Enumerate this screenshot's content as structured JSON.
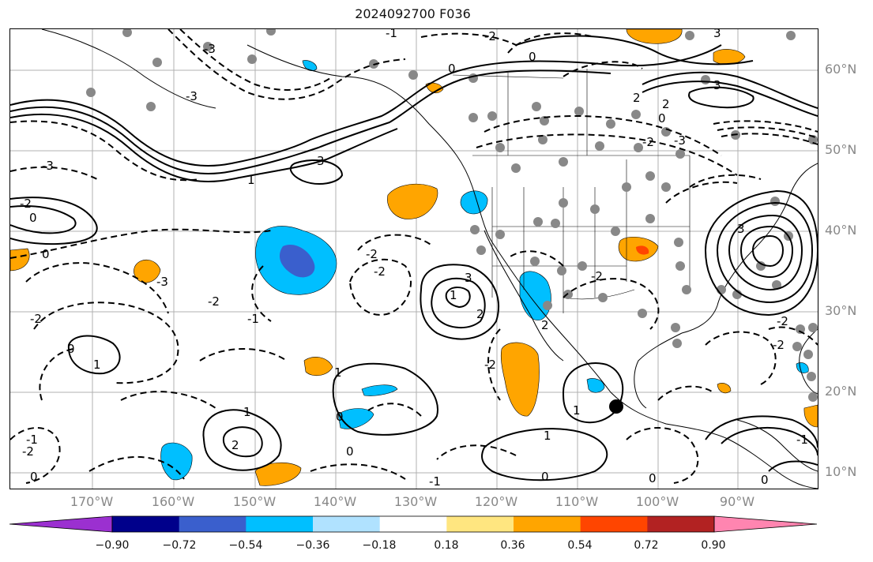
{
  "title": "2024092700 F036",
  "lat_labels": [
    "60°N",
    "50°N",
    "40°N",
    "30°N",
    "20°N",
    "10°N"
  ],
  "lon_labels": [
    "170°W",
    "160°W",
    "150°W",
    "140°W",
    "130°W",
    "120°W",
    "110°W",
    "100°W",
    "90°W"
  ],
  "contour_labels": [
    "-3",
    "-2",
    "-1",
    "0",
    "1",
    "2",
    "3"
  ],
  "colorbar": {
    "ticks": [
      "−0.90",
      "−0.72",
      "−0.54",
      "−0.36",
      "−0.18",
      "0.18",
      "0.36",
      "0.54",
      "0.72",
      "0.90"
    ],
    "colors": [
      "#9b30d0",
      "#00008b",
      "#3a5fcd",
      "#00bfff",
      "#b0e2ff",
      "#ffffff",
      "#ffe680",
      "#ffa500",
      "#ff4500",
      "#b22222",
      "#ff85b0"
    ]
  },
  "marker": {
    "label": "storm-center"
  },
  "colors": {
    "positive": "#ffa500",
    "negative": "#00bfff",
    "station": "#888888"
  }
}
